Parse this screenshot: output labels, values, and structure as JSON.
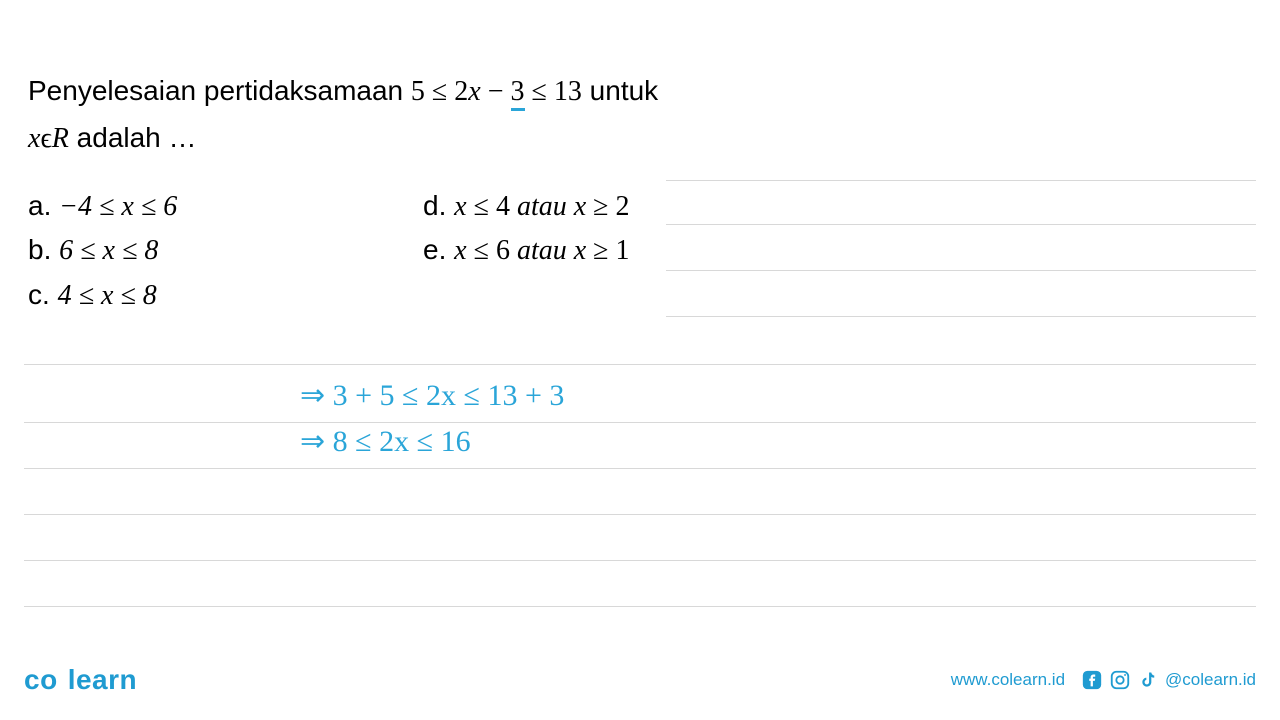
{
  "question": {
    "line1_prefix": "Penyelesaian pertidaksamaan ",
    "line1_math_a": "5 ≤ 2",
    "line1_math_var": "x",
    "line1_math_b": " − ",
    "line1_math_underlined": "3",
    "line1_math_c": " ≤ 13",
    "line1_suffix": " untuk",
    "line2_var": "x",
    "line2_elem": "ϵ",
    "line2_set": "R",
    "line2_suffix": " adalah …"
  },
  "options": {
    "a": {
      "letter": "a.  ",
      "expr": "−4 ≤ x ≤ 6"
    },
    "b": {
      "letter": "b.  ",
      "expr": "6 ≤ x ≤ 8"
    },
    "c": {
      "letter": "c.  ",
      "expr": "4 ≤ x ≤ 8"
    },
    "d": {
      "letter": "d.  ",
      "expr": "x ≤ 4 atau x ≥ 2"
    },
    "e": {
      "letter": "e.  ",
      "expr": "x ≤ 6 atau x ≥ 1"
    }
  },
  "work": {
    "line1": "⇒  3 + 5 ≤ 2x ≤ 13 + 3",
    "line2": "⇒  8 ≤ 2x ≤ 16"
  },
  "rules": {
    "short_tops": [
      18,
      62,
      108,
      154
    ],
    "full_tops": [
      202,
      260,
      306,
      352,
      398,
      444
    ]
  },
  "footer": {
    "logo_a": "co",
    "logo_b": "learn",
    "website": "www.colearn.id",
    "handle": "@colearn.id"
  },
  "colors": {
    "accent": "#2aa5d8",
    "brand": "#1f9bd1",
    "line": "#d8d8d8",
    "text": "#000000"
  }
}
